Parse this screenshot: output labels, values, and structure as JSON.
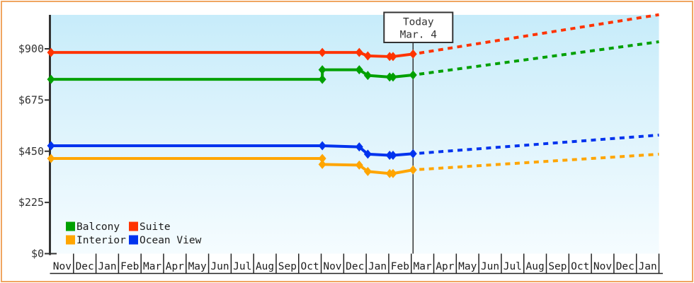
{
  "chart_data": {
    "type": "line",
    "x_axis": {
      "month_labels": [
        "Nov",
        "Dec",
        "Jan",
        "Feb",
        "Mar",
        "Apr",
        "May",
        "Jun",
        "Jul",
        "Aug",
        "Sep",
        "Oct",
        "Nov",
        "Dec",
        "Jan",
        "Feb",
        "Mar",
        "Apr",
        "May",
        "Jun",
        "Jul",
        "Aug",
        "Sep",
        "Oct",
        "Nov",
        "Dec",
        "Jan"
      ]
    },
    "y_axis": {
      "tick_values": [
        0,
        225,
        450,
        675,
        900
      ],
      "tick_labels": [
        "$0",
        "$225",
        "$450",
        "$675",
        "$900"
      ],
      "range": [
        0,
        1050
      ],
      "grid": "off"
    },
    "today": {
      "line1": "Today",
      "line2": "Mar. 4",
      "x_month_index": 16.08
    },
    "series": [
      {
        "name": "Balcony",
        "color": "#00A000",
        "points": [
          [
            0,
            766
          ],
          [
            12.05,
            766
          ],
          [
            12.05,
            808
          ],
          [
            13.69,
            808
          ],
          [
            14.07,
            783
          ],
          [
            15.04,
            776
          ],
          [
            15.19,
            776
          ],
          [
            16.08,
            785
          ]
        ],
        "projection_end": [
          27,
          931
        ]
      },
      {
        "name": "Suite",
        "color": "#FF3300",
        "points": [
          [
            0,
            884
          ],
          [
            12.05,
            884
          ],
          [
            13.69,
            884
          ],
          [
            14.07,
            869
          ],
          [
            15.04,
            866
          ],
          [
            15.19,
            866
          ],
          [
            16.08,
            877
          ]
        ],
        "projection_end": [
          27,
          1050
        ]
      },
      {
        "name": "Interior",
        "color": "#FFA500",
        "points": [
          [
            0,
            418
          ],
          [
            12.05,
            418
          ],
          [
            12.05,
            392
          ],
          [
            13.69,
            389
          ],
          [
            14.07,
            361
          ],
          [
            15.04,
            352
          ],
          [
            15.19,
            352
          ],
          [
            16.08,
            368
          ]
        ],
        "projection_end": [
          27,
          437
        ]
      },
      {
        "name": "Ocean View",
        "color": "#0033EE",
        "points": [
          [
            0,
            474
          ],
          [
            12.05,
            474
          ],
          [
            13.69,
            469
          ],
          [
            14.07,
            437
          ],
          [
            15.04,
            432
          ],
          [
            15.19,
            432
          ],
          [
            16.08,
            439
          ]
        ],
        "projection_end": [
          27,
          521
        ]
      }
    ],
    "legend": {
      "position": "bottom-left-inside-plot",
      "items": [
        {
          "label": "Balcony",
          "color": "#00A000"
        },
        {
          "label": "Suite",
          "color": "#FF3300"
        },
        {
          "label": "Interior",
          "color": "#FFA500"
        },
        {
          "label": "Ocean View",
          "color": "#0033EE"
        }
      ]
    }
  },
  "colors": {
    "border": "#F0A661",
    "axis": "#333333",
    "text": "#1c1c1c",
    "plot_bg_top": "#C7ECFA",
    "plot_bg_mid": "#DDF3FC",
    "plot_bg_bottom": "#F5FCFF"
  }
}
